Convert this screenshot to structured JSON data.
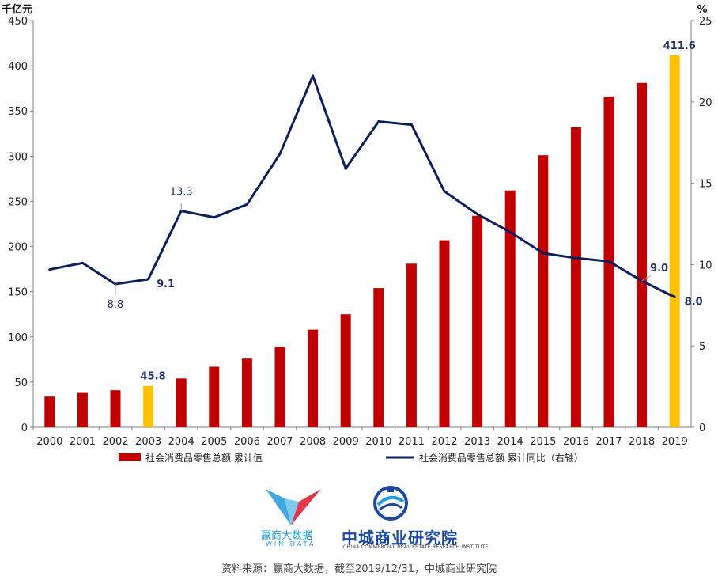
{
  "chart_data": {
    "type": "bar+line",
    "categories": [
      "2000",
      "2001",
      "2002",
      "2003",
      "2004",
      "2005",
      "2006",
      "2007",
      "2008",
      "2009",
      "2010",
      "2011",
      "2012",
      "2013",
      "2014",
      "2015",
      "2016",
      "2017",
      "2018",
      "2019"
    ],
    "series": [
      {
        "name": "社会消费品零售总额 累计值",
        "kind": "bar",
        "axis": "left",
        "color": "#c00000",
        "highlight_color": "#ffc000",
        "highlight_categories": [
          "2003",
          "2019"
        ],
        "values": [
          34,
          38,
          41,
          45.8,
          54,
          67,
          76,
          89,
          108,
          125,
          154,
          181,
          207,
          234,
          262,
          301,
          332,
          366,
          381,
          411.6
        ]
      },
      {
        "name": "社会消费品零售总额 累计同比（右轴）",
        "kind": "line",
        "axis": "right",
        "color": "#0c1f5c",
        "values": [
          9.7,
          10.1,
          8.8,
          9.1,
          13.3,
          12.9,
          13.7,
          16.8,
          21.6,
          15.9,
          18.8,
          18.6,
          14.5,
          13.1,
          12.0,
          10.7,
          10.4,
          10.2,
          9.0,
          8.0
        ]
      }
    ],
    "left_axis": {
      "unit": "千亿元",
      "min": 0,
      "max": 450,
      "ticks": [
        "0",
        "50",
        "100",
        "150",
        "200",
        "250",
        "300",
        "350",
        "400",
        "450"
      ]
    },
    "right_axis": {
      "unit": "%",
      "min": 0,
      "max": 25,
      "ticks": [
        "0",
        "5",
        "10",
        "15",
        "20",
        "25"
      ]
    },
    "bar_labels": [
      {
        "category": "2003",
        "text": "45.8"
      },
      {
        "category": "2019",
        "text": "411.6"
      }
    ],
    "line_labels": [
      {
        "category": "2002",
        "text": "8.8",
        "bold": false
      },
      {
        "category": "2003",
        "text": "9.1",
        "bold": true
      },
      {
        "category": "2004",
        "text": "13.3",
        "bold": false
      },
      {
        "category": "2018",
        "text": "9.0",
        "bold": true
      },
      {
        "category": "2019",
        "text": "8.0",
        "bold": true
      }
    ],
    "legend": {
      "placement": "bottom",
      "items": [
        "社会消费品零售总额 累计值",
        "社会消费品零售总额 累计同比（右轴）"
      ]
    },
    "grid": false
  },
  "logos": {
    "winda": {
      "name": "赢商大数据",
      "sub": "WIN DATA"
    },
    "institute": {
      "name": "中城商业研究院",
      "sub": "CHINA COMMERCIAL REAL ESTATE RESEARCH INSTITUTE"
    }
  },
  "source_text": "资料来源：赢商大数据，截至2019/12/31，中城商业研究院"
}
